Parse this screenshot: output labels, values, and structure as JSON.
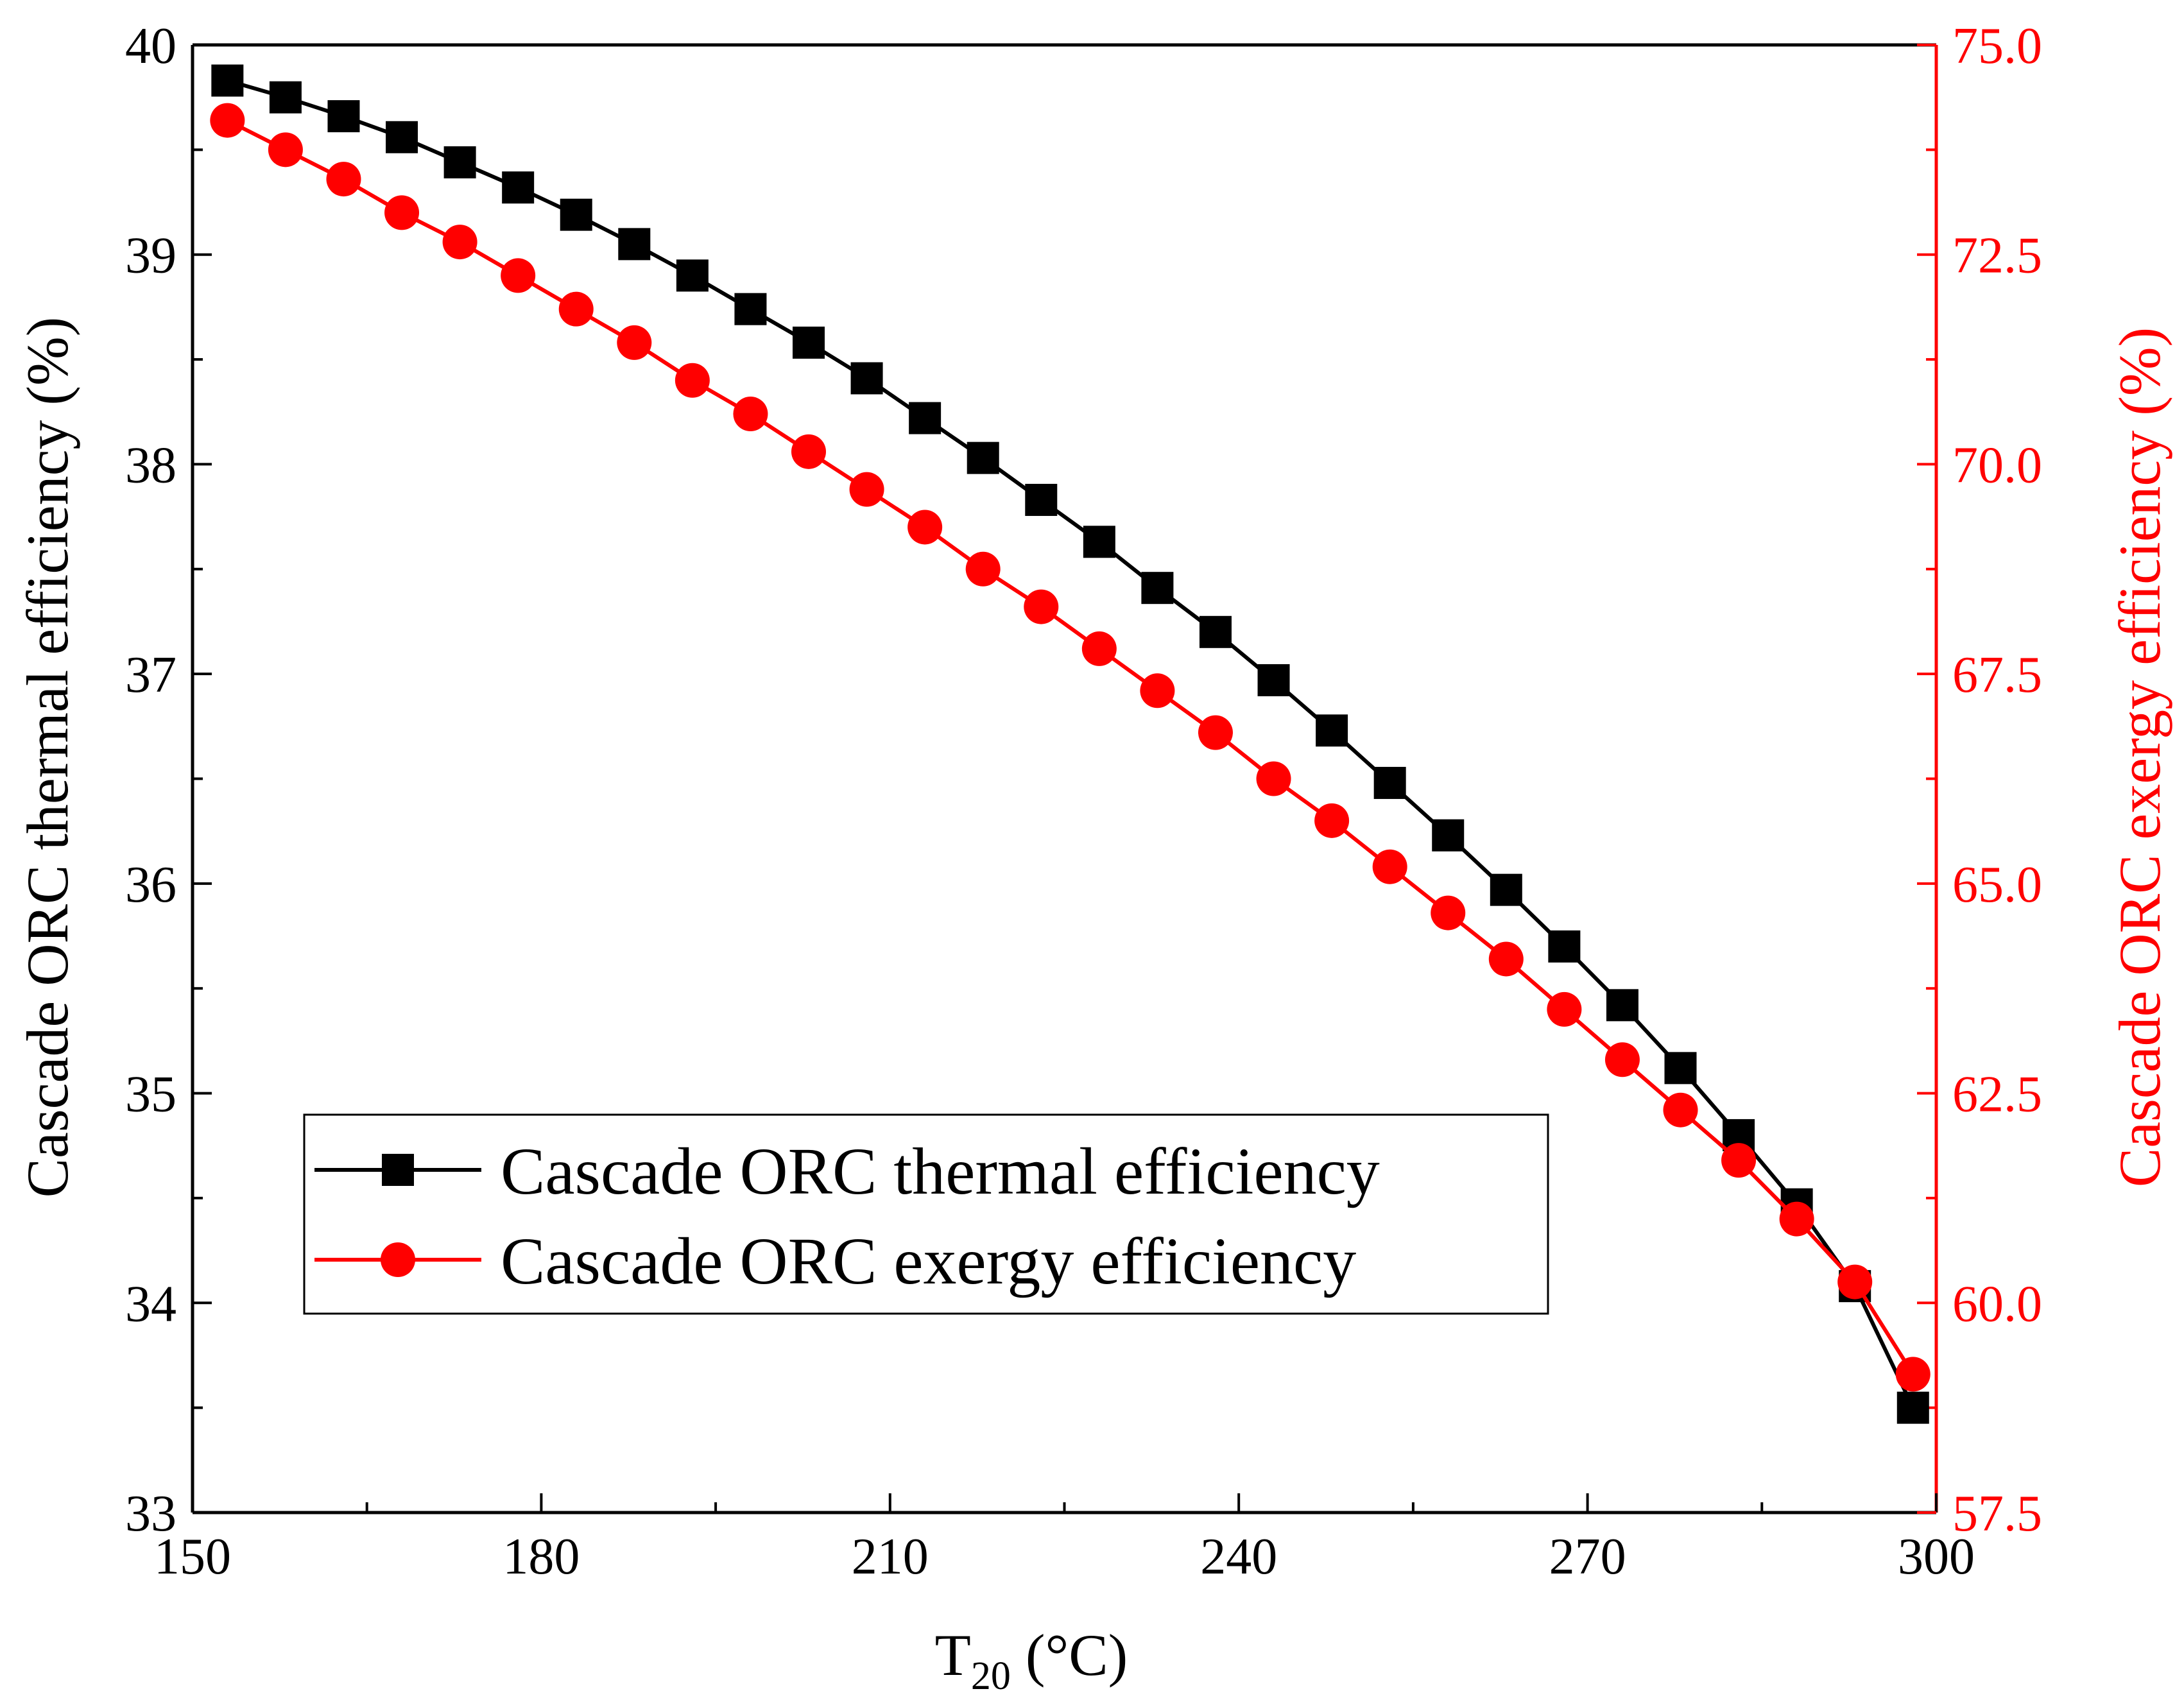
{
  "chart_data": {
    "type": "line",
    "x": [
      153,
      158,
      163,
      168,
      173,
      178,
      183,
      188,
      193,
      198,
      203,
      208,
      213,
      218,
      223,
      228,
      233,
      238,
      243,
      248,
      253,
      258,
      263,
      268,
      273,
      278,
      283,
      288,
      293,
      298
    ],
    "series": [
      {
        "name": "Cascade ORC thermal efficiency",
        "axis": "left",
        "marker": "square",
        "color": "#000000",
        "values": [
          39.83,
          39.75,
          39.66,
          39.56,
          39.44,
          39.32,
          39.19,
          39.05,
          38.9,
          38.74,
          38.58,
          38.41,
          38.22,
          38.03,
          37.83,
          37.63,
          37.41,
          37.2,
          36.97,
          36.73,
          36.48,
          36.23,
          35.97,
          35.7,
          35.42,
          35.12,
          34.8,
          34.47,
          34.08,
          33.5
        ]
      },
      {
        "name": "Cascade ORC exergy efficiency",
        "axis": "right",
        "marker": "circle",
        "color": "#ff0000",
        "values": [
          74.1,
          73.75,
          73.4,
          73.0,
          72.65,
          72.25,
          71.85,
          71.45,
          71.0,
          70.6,
          70.15,
          69.7,
          69.25,
          68.75,
          68.3,
          67.8,
          67.3,
          66.8,
          66.25,
          65.75,
          65.2,
          64.65,
          64.1,
          63.5,
          62.9,
          62.3,
          61.7,
          61.0,
          60.25,
          59.15
        ]
      }
    ],
    "xlabel": "T",
    "xlabel_sub": "20",
    "xlabel_unit": " (°C)",
    "ylabel": "Cascade ORC thermal efficiency (%)",
    "y2label": "Cascade ORC exergy efficiency (%)",
    "xlim": [
      150,
      300
    ],
    "ylim": [
      33,
      40
    ],
    "y2lim": [
      57.5,
      75
    ],
    "xticks": [
      150,
      180,
      210,
      240,
      270,
      300
    ],
    "yticks": [
      33,
      34,
      35,
      36,
      37,
      38,
      39,
      40
    ],
    "y2ticks": [
      "57.5",
      "60.0",
      "62.5",
      "65.0",
      "67.5",
      "70.0",
      "72.5",
      "75.0"
    ],
    "grid": false,
    "legend": "lower-left",
    "y2_color": "#ff0000"
  }
}
